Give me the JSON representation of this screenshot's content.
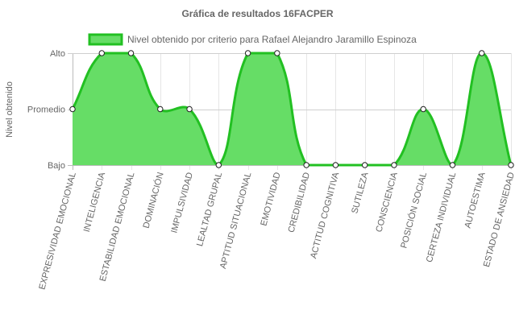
{
  "chart_data": {
    "type": "area",
    "title": "Gráfica de resultados 16FACPER",
    "ylabel": "Nivel obtenido",
    "xlabel": "",
    "y_levels": [
      "Bajo",
      "Promedio",
      "Alto"
    ],
    "ylim": [
      0,
      2
    ],
    "categories": [
      "EXPRESIVIDAD EMOCIONAL",
      "INTELIGENCIA",
      "ESTABILIDAD EMOCIONAL",
      "DOMINACIÓN",
      "IMPULSIVIDAD",
      "LEALTAD GRUPAL",
      "APTITUD SITUACIONAL",
      "EMOTIVIDAD",
      "CREDIBILIDAD",
      "ACTITUD COGNITIVA",
      "SUTILEZA",
      "CONSCIENCIA",
      "POSICIÓN SOCIAL",
      "CERTEZA INDIVIDUAL",
      "AUTOESTIMA",
      "ESTADO DE ANSIEDAD"
    ],
    "series": [
      {
        "name": "Nivel obtenido por criterio para Rafael Alejandro Jaramillo Espinoza",
        "values": [
          1,
          2,
          2,
          1,
          1,
          0,
          2,
          2,
          0,
          0,
          0,
          0,
          1,
          0,
          2,
          0
        ],
        "line_color": "#22c022",
        "fill_color": "#66dd66"
      }
    ],
    "grid": true,
    "legend": "top"
  }
}
